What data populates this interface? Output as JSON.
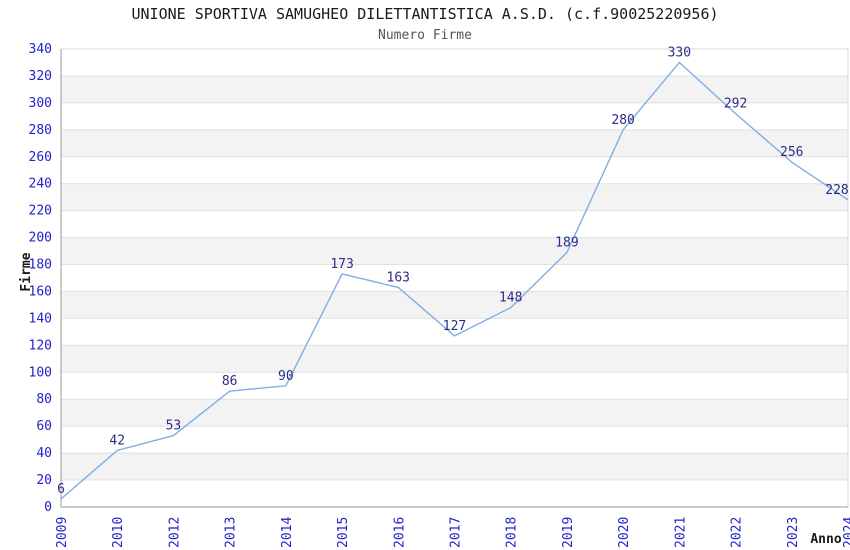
{
  "chart_data": {
    "type": "line",
    "title": "UNIONE SPORTIVA SAMUGHEO DILETTANTISTICA A.S.D. (c.f.90025220956)",
    "subtitle": "Numero Firme",
    "xlabel": "Anno",
    "ylabel": "Firme",
    "categories": [
      "2009",
      "2010",
      "2012",
      "2013",
      "2014",
      "2015",
      "2016",
      "2017",
      "2018",
      "2019",
      "2020",
      "2021",
      "2022",
      "2023",
      "2024"
    ],
    "values": [
      6,
      42,
      53,
      86,
      90,
      173,
      163,
      127,
      148,
      189,
      280,
      330,
      292,
      256,
      228
    ],
    "ylim": [
      0,
      340
    ],
    "ytick_step": 20,
    "grid": true,
    "alternating_bands": true,
    "legend_position": "none",
    "data_labels_visible": true,
    "colors": {
      "line": "#7fb0e3",
      "tick_label": "#2222cc",
      "data_label": "#2d2d86",
      "grid": "#e0e0e0",
      "band": "#f3f3f3",
      "spine": "#999999",
      "border": "#d9d9d9",
      "title": "#1a1a1a",
      "subtitle": "#555555"
    }
  }
}
